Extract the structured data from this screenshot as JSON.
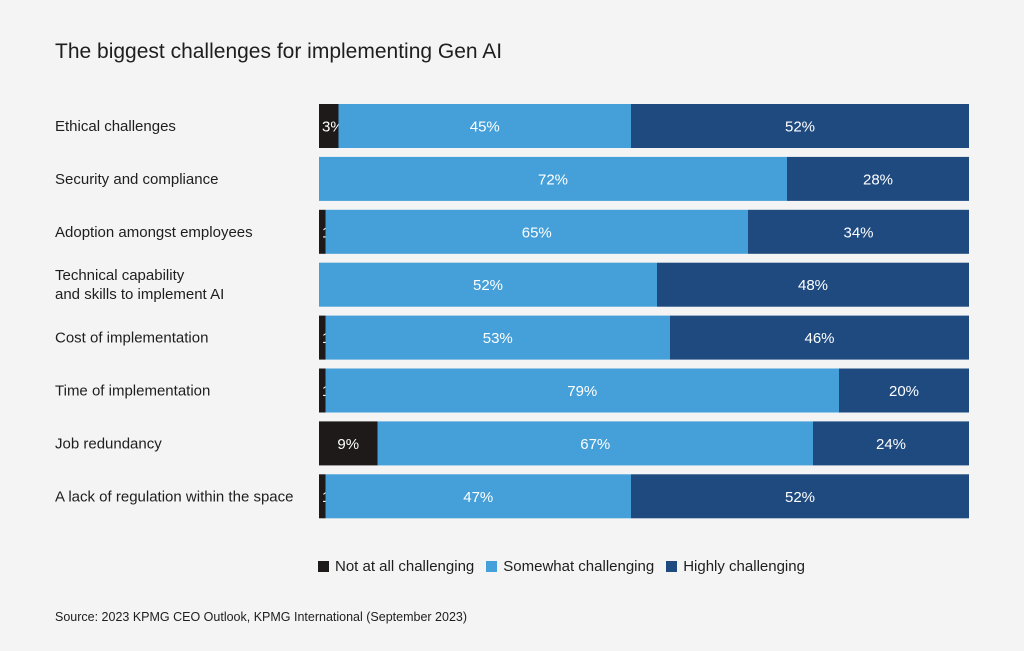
{
  "chart_data": {
    "type": "bar",
    "orientation": "horizontal",
    "stacked": true,
    "title": "The biggest challenges for implementing Gen AI",
    "categories": [
      [
        "Ethical challenges"
      ],
      [
        "Security and compliance"
      ],
      [
        "Adoption amongst employees"
      ],
      [
        "Technical capability",
        "and skills to implement AI"
      ],
      [
        "Cost of implementation"
      ],
      [
        "Time of implementation"
      ],
      [
        "Job redundancy"
      ],
      [
        "A lack of regulation within the space"
      ]
    ],
    "series": [
      {
        "name": "Not at all challenging",
        "color": "#1e1a1a",
        "values": [
          3,
          0,
          1,
          0,
          1,
          1,
          9,
          1
        ]
      },
      {
        "name": "Somewhat challenging",
        "color": "#459fd8",
        "values": [
          45,
          72,
          65,
          52,
          53,
          79,
          67,
          47
        ]
      },
      {
        "name": "Highly challenging",
        "color": "#1e4a80",
        "values": [
          52,
          28,
          34,
          48,
          46,
          20,
          24,
          52
        ]
      }
    ],
    "xlim": [
      0,
      100
    ],
    "value_suffix": "%",
    "grid": false,
    "legend_placement": "bottom"
  },
  "source": "Source: 2023 KPMG CEO Outlook, KPMG International (September 2023)"
}
